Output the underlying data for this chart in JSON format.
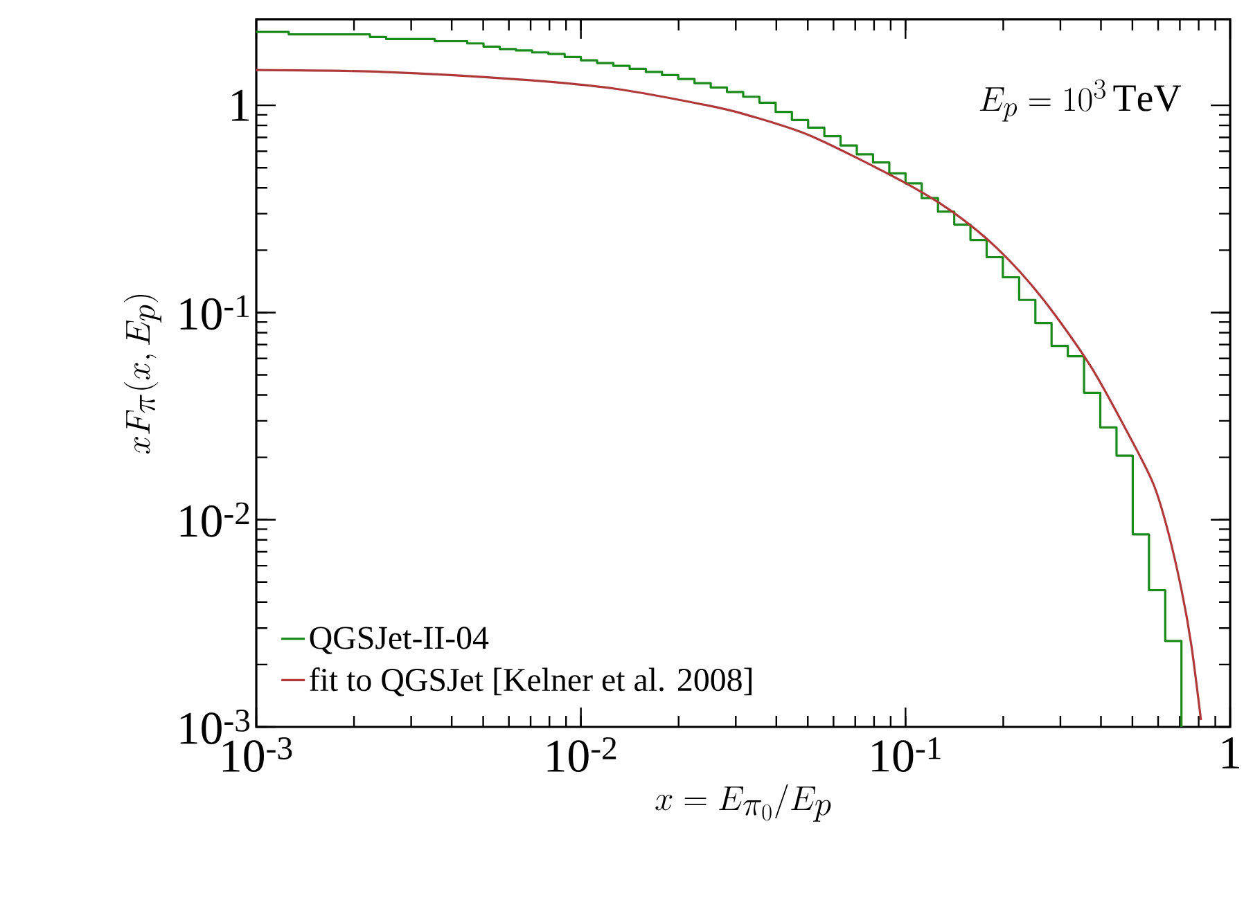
{
  "chart_data": {
    "type": "histogram",
    "xlabel": "x = E_{\\pi_0}/E_p",
    "ylabel": "xF_\\pi(x, E_p)",
    "annotations": [
      "E_p = 10^3\\,\\mathrm{TeV}"
    ],
    "log": "xy",
    "xlim": [
      0.001,
      1
    ],
    "ylim": [
      0.001,
      2.6
    ],
    "xticks": [
      {
        "value": 0.001,
        "label": "10$^{-3}$"
      },
      {
        "value": 0.01,
        "label": "10$^{-2}$"
      },
      {
        "value": 0.1,
        "label": "10$^{-1}$"
      },
      1
    ],
    "yticks": [
      {
        "value": 0.001,
        "label": "10$^{-3}$"
      },
      {
        "value": 0.01,
        "label": "10$^{-2}$"
      },
      {
        "value": 0.1,
        "label": "10$^{-1}$"
      },
      1
    ],
    "legend": "bottom left",
    "series": [
      {
        "name": "QGSJet-II-04",
        "color": "#1a8a1a",
        "bins": [
          0.001,
          0.001122,
          0.001259,
          0.001413,
          0.001585,
          0.001778,
          0.001995,
          0.002239,
          0.002512,
          0.002818,
          0.003162,
          0.003548,
          0.003981,
          0.004467,
          0.005012,
          0.005623,
          0.00631,
          0.007079,
          0.007943,
          0.008913,
          0.01,
          0.01122,
          0.01259,
          0.01413,
          0.01585,
          0.01778,
          0.01995,
          0.02239,
          0.02512,
          0.02818,
          0.03162,
          0.03548,
          0.03981,
          0.04467,
          0.05012,
          0.05623,
          0.0631,
          0.07079,
          0.07943,
          0.08913,
          0.1,
          0.1122,
          0.1259,
          0.1413,
          0.1585,
          0.1778,
          0.1995,
          0.2239,
          0.2512,
          0.2818,
          0.3162,
          0.3548,
          0.3981,
          0.4467,
          0.5012,
          0.5623,
          0.631,
          0.7079
        ],
        "values": [
          2.26,
          2.26,
          2.2,
          2.2,
          2.2,
          2.2,
          2.2,
          2.14,
          2.09,
          2.09,
          2.09,
          2.04,
          2.04,
          1.99,
          1.92,
          1.87,
          1.84,
          1.8,
          1.77,
          1.71,
          1.65,
          1.6,
          1.55,
          1.5,
          1.45,
          1.4,
          1.34,
          1.28,
          1.22,
          1.16,
          1.1,
          1.03,
          0.93,
          0.85,
          0.78,
          0.71,
          0.64,
          0.58,
          0.53,
          0.47,
          0.42,
          0.357,
          0.307,
          0.266,
          0.224,
          0.185,
          0.148,
          0.115,
          0.089,
          0.069,
          0.0615,
          0.041,
          0.0279,
          0.0204,
          0.0085,
          0.00457,
          0.0026
        ]
      },
      {
        "name": "fit to QGSJet [Kelner et al. 2008]",
        "type": "line",
        "color": "#b03a3a",
        "x": [
          0.001,
          0.00245,
          0.0066,
          0.0129,
          0.0245,
          0.0324,
          0.0513,
          0.0977,
          0.138,
          0.191,
          0.263,
          0.372,
          0.495,
          0.581,
          0.641,
          0.708,
          0.759,
          0.813
        ],
        "values": [
          1.48,
          1.45,
          1.33,
          1.2,
          1.0,
          0.9,
          0.71,
          0.43,
          0.31,
          0.205,
          0.118,
          0.055,
          0.0245,
          0.0148,
          0.009,
          0.0046,
          0.0025,
          0.00108
        ]
      }
    ]
  }
}
